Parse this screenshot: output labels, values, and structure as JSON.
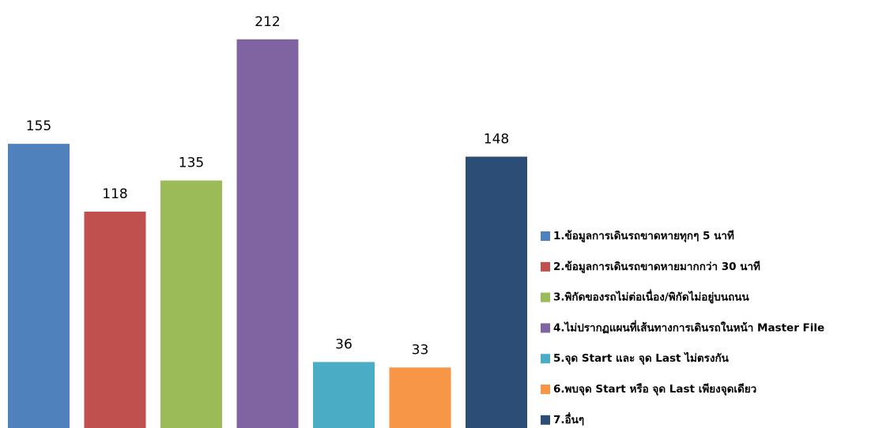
{
  "chart_data": {
    "type": "bar",
    "series": [
      {
        "name": "1.ข้อมูลการเดินรถขาดหายทุกๆ 5 นาที",
        "color": "#4f81bd",
        "values": [
          155
        ]
      },
      {
        "name": "2.ข้อมูลการเดินรถขาดหายมากกว่า 30 นาที",
        "color": "#c0504d",
        "values": [
          118
        ]
      },
      {
        "name": "3.พิกัดของรถไม่ต่อเนื่อง/พิกัดไม่อยู่บนถนน",
        "color": "#9bbb59",
        "values": [
          135
        ]
      },
      {
        "name": "4.ไม่ปรากฏแผนที่เส้นทางการเดินรถในหน้า Master File",
        "color": "#8064a2",
        "values": [
          212
        ]
      },
      {
        "name": "5.จุด Start และ จุด Last ไม่ตรงกัน",
        "color": "#4bacc6",
        "values": [
          36
        ]
      },
      {
        "name": "6.พบจุด Start หรือ จุด Last เพียงจุดเดียว",
        "color": "#f79646",
        "values": [
          33
        ]
      },
      {
        "name": "7.อื่นๆ",
        "color": "#2c4d75",
        "values": [
          148
        ]
      }
    ],
    "ylim": [
      0,
      230
    ]
  }
}
